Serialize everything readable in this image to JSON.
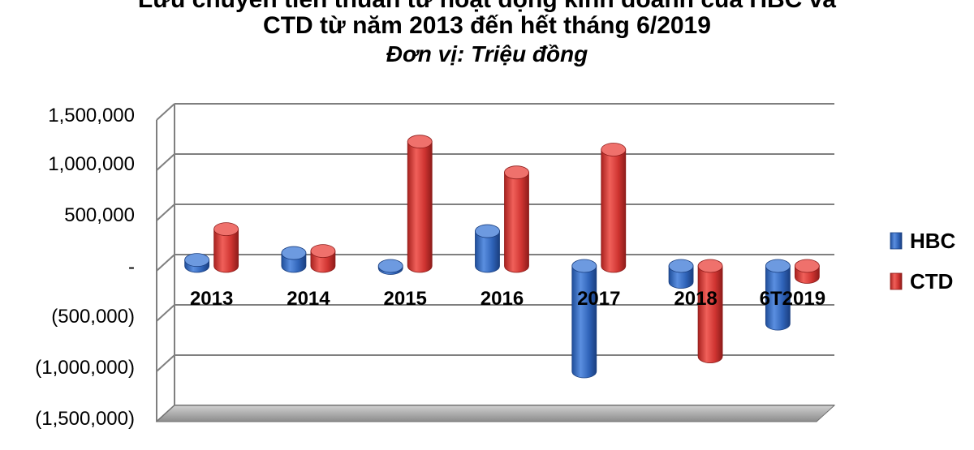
{
  "chart_data": {
    "type": "bar",
    "title_line1": "Lưu chuyển tiền thuần từ hoạt động kinh doanh của HBC và",
    "title_line2": "CTD từ năm 2013 đến hết tháng 6/2019",
    "subtitle": "Đơn vị: Triệu đồng",
    "categories": [
      "2013",
      "2014",
      "2015",
      "2016",
      "2017",
      "2018",
      "6T2019"
    ],
    "series": [
      {
        "name": "HBC",
        "values": [
          60000,
          130000,
          -20000,
          350000,
          -1060000,
          -160000,
          -580000
        ]
      },
      {
        "name": "CTD",
        "values": [
          370000,
          150000,
          1250000,
          940000,
          1170000,
          -910000,
          -110000
        ]
      }
    ],
    "yticks": [
      "1,500,000",
      "1,000,000",
      "500,000",
      "-",
      "(500,000)",
      "(1,000,000)",
      "(1,500,000)"
    ],
    "ylim": [
      -1500000,
      1500000
    ],
    "grid": true,
    "three_d": true,
    "legend_position": "right",
    "colors": {
      "HBC": "#3a6fc4",
      "CTD": "#d63a36"
    }
  }
}
